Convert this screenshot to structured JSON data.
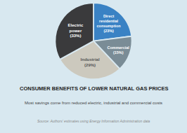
{
  "chart_data": {
    "type": "pie",
    "title": "CONSUMER BENEFITS OF LOWER NATURAL GAS PRICES",
    "subtitle": "Most savings come from reduced electric, industrial and commercial costs",
    "source": "Source: Authors' estimates using Energy Information Administration data",
    "categories": [
      "Direct\nresidential\nconsumption\n(23%)",
      "Commercial\n(15%)",
      "Industrial\n(29%)",
      "Electric\npower\n(33%)"
    ],
    "values": [
      23,
      15,
      29,
      33
    ],
    "colors": [
      "#3a82c4",
      "#7a8c96",
      "#ccc9be",
      "#3a3a3c"
    ]
  }
}
